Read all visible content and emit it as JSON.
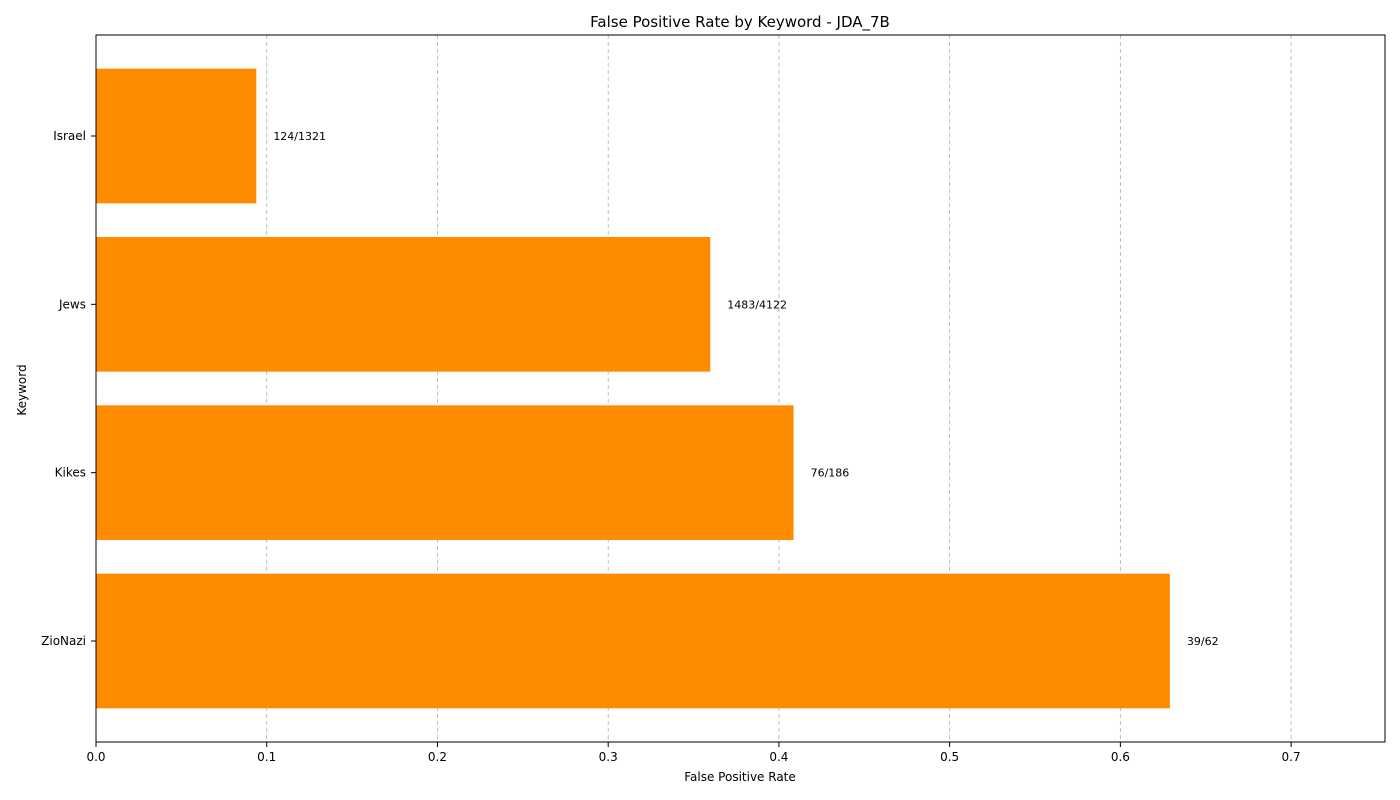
{
  "chart_data": {
    "type": "bar",
    "orientation": "horizontal",
    "title": "False Positive Rate by Keyword - JDA_7B",
    "xlabel": "False Positive Rate",
    "ylabel": "Keyword",
    "categories": [
      "Israel",
      "Jews",
      "Kikes",
      "ZioNazi"
    ],
    "values": [
      0.0939,
      0.3598,
      0.4086,
      0.629
    ],
    "data_labels": [
      "124/1321",
      "1483/4122",
      "76/186",
      "39/62"
    ],
    "xlim": [
      0,
      0.755
    ],
    "xticks": [
      0.0,
      0.1,
      0.2,
      0.3,
      0.4,
      0.5,
      0.6,
      0.7
    ],
    "xtick_labels": [
      "0.0",
      "0.1",
      "0.2",
      "0.3",
      "0.4",
      "0.5",
      "0.6",
      "0.7"
    ],
    "grid": "x-axis dashed",
    "bar_color": "#ff8c00"
  }
}
